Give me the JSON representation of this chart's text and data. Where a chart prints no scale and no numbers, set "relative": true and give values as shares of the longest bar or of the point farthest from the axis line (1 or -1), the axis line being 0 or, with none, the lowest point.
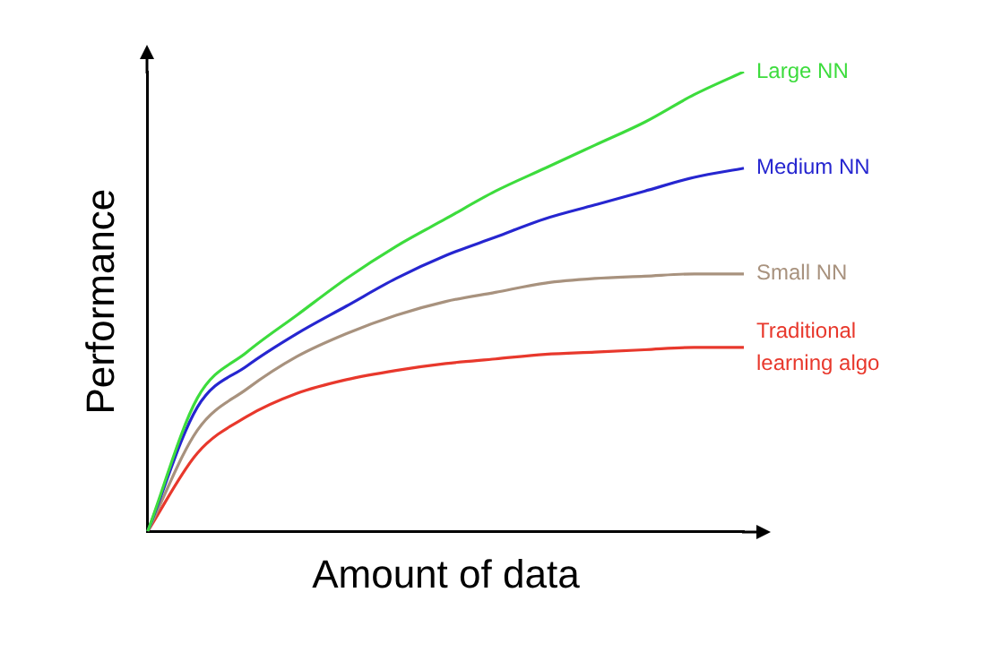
{
  "chart_data": {
    "type": "line",
    "xlabel": "Amount of data",
    "ylabel": "Performance",
    "relative": true,
    "marker": "none",
    "categories": [
      null,
      null,
      null,
      null,
      null,
      null,
      null,
      null,
      null,
      null,
      null,
      null,
      null
    ],
    "series": [
      {
        "name": "Large NN",
        "color": "#3ddc3d",
        "values": [
          0,
          0.29,
          0.39,
          0.47,
          0.55,
          0.62,
          0.68,
          0.74,
          0.79,
          0.84,
          0.89,
          0.95,
          1.0
        ]
      },
      {
        "name": "Medium NN",
        "color": "#2626d0",
        "values": [
          0,
          0.27,
          0.36,
          0.43,
          0.49,
          0.55,
          0.6,
          0.64,
          0.68,
          0.71,
          0.74,
          0.77,
          0.79
        ]
      },
      {
        "name": "Small NN",
        "color": "#a8927e",
        "values": [
          0,
          0.22,
          0.31,
          0.38,
          0.43,
          0.47,
          0.5,
          0.52,
          0.54,
          0.55,
          0.555,
          0.56,
          0.56
        ]
      },
      {
        "name": "Traditional learning algo",
        "color": "#e8382c",
        "values": [
          0,
          0.17,
          0.25,
          0.3,
          0.33,
          0.35,
          0.365,
          0.375,
          0.385,
          0.39,
          0.395,
          0.4,
          0.4
        ]
      }
    ]
  }
}
